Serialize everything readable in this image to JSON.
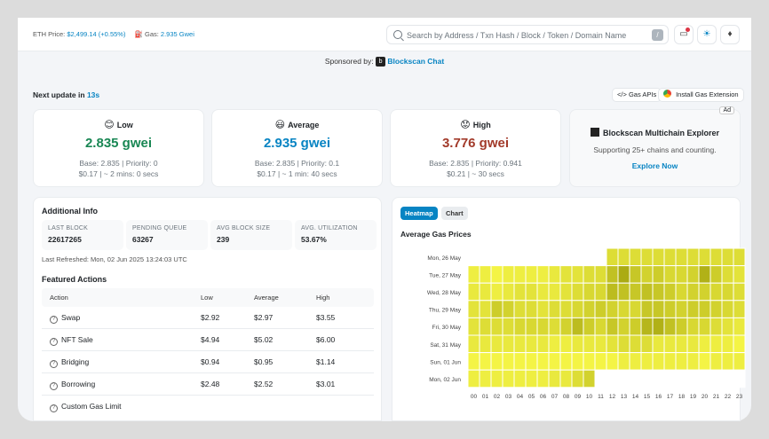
{
  "topbar": {
    "eth_label": "ETH Price:",
    "eth_value": "$2,499.14 (+0.55%)",
    "gas_label": "Gas:",
    "gas_value": "2.935 Gwei",
    "search_placeholder": "Search by Address / Txn Hash / Block / Token / Domain Name",
    "slash_key": "/"
  },
  "sponsor": {
    "label": "Sponsored by:",
    "name": "Blockscan Chat"
  },
  "next_update": {
    "label": "Next update in",
    "seconds": "13s"
  },
  "pills": {
    "gas_apis": "Gas APIs",
    "extension": "Install Gas Extension"
  },
  "gas_cards": [
    {
      "level": "Low",
      "emoji": "😊",
      "price": "2.835 gwei",
      "color": "#198754",
      "meta1": "Base: 2.835 | Priority: 0",
      "meta2": "$0.17 | ~ 2 mins: 0 secs"
    },
    {
      "level": "Average",
      "emoji": "😃",
      "price": "2.935 gwei",
      "color": "#0784c3",
      "meta1": "Base: 2.835 | Priority: 0.1",
      "meta2": "$0.17 | ~ 1 min: 40 secs"
    },
    {
      "level": "High",
      "emoji": "😟",
      "price": "3.776 gwei",
      "color": "#a23a2a",
      "meta1": "Base: 2.835 | Priority: 0.941",
      "meta2": "$0.21 | ~ 30 secs"
    }
  ],
  "ad": {
    "badge": "Ad",
    "title": "Blockscan Multichain Explorer",
    "subtitle": "Supporting 25+ chains and counting.",
    "cta": "Explore Now"
  },
  "additional_info": {
    "title": "Additional Info",
    "stats": [
      {
        "key": "LAST BLOCK",
        "value": "22617265"
      },
      {
        "key": "PENDING QUEUE",
        "value": "63267"
      },
      {
        "key": "AVG BLOCK SIZE",
        "value": "239"
      },
      {
        "key": "AVG. UTILIZATION",
        "value": "53.67%"
      }
    ],
    "refreshed": "Last Refreshed: Mon, 02 Jun 2025 13:24:03 UTC"
  },
  "featured": {
    "title": "Featured Actions",
    "headers": [
      "Action",
      "Low",
      "Average",
      "High"
    ],
    "rows": [
      [
        "Swap",
        "$2.92",
        "$2.97",
        "$3.55"
      ],
      [
        "NFT Sale",
        "$4.94",
        "$5.02",
        "$6.00"
      ],
      [
        "Bridging",
        "$0.94",
        "$0.95",
        "$1.14"
      ],
      [
        "Borrowing",
        "$2.48",
        "$2.52",
        "$3.01"
      ]
    ],
    "partial_row": "Custom Gas Limit"
  },
  "heatmap": {
    "tab_heatmap": "Heatmap",
    "tab_chart": "Chart",
    "title": "Average Gas Prices",
    "colors": {
      "low": "#ffff4d",
      "high": "#8f8f00",
      "empty": "#ffffff"
    }
  },
  "chart_data": {
    "type": "heatmap",
    "title": "Average Gas Prices",
    "x": [
      "00",
      "01",
      "02",
      "03",
      "04",
      "05",
      "06",
      "07",
      "08",
      "09",
      "10",
      "11",
      "12",
      "13",
      "14",
      "15",
      "16",
      "17",
      "18",
      "19",
      "20",
      "21",
      "22",
      "23"
    ],
    "y": [
      "Mon, 26 May",
      "Tue, 27 May",
      "Wed, 28 May",
      "Thu, 29 May",
      "Fri, 30 May",
      "Sat, 31 May",
      "Sun, 01 Jun",
      "Mon, 02 Jun"
    ],
    "values": [
      [
        null,
        null,
        null,
        null,
        null,
        null,
        null,
        null,
        null,
        null,
        null,
        null,
        0.3,
        0.3,
        0.3,
        0.3,
        0.3,
        0.3,
        0.3,
        0.3,
        0.3,
        0.3,
        0.3,
        0.3
      ],
      [
        0.15,
        0.15,
        0.1,
        0.15,
        0.15,
        0.15,
        0.15,
        0.2,
        0.25,
        0.25,
        0.3,
        0.3,
        0.55,
        0.75,
        0.5,
        0.4,
        0.45,
        0.35,
        0.35,
        0.4,
        0.7,
        0.45,
        0.3,
        0.25
      ],
      [
        0.2,
        0.2,
        0.15,
        0.2,
        0.25,
        0.25,
        0.2,
        0.2,
        0.25,
        0.3,
        0.35,
        0.35,
        0.6,
        0.55,
        0.5,
        0.55,
        0.5,
        0.45,
        0.35,
        0.4,
        0.4,
        0.35,
        0.35,
        0.3
      ],
      [
        0.25,
        0.25,
        0.45,
        0.4,
        0.3,
        0.3,
        0.25,
        0.3,
        0.3,
        0.35,
        0.4,
        0.45,
        0.4,
        0.35,
        0.35,
        0.5,
        0.5,
        0.45,
        0.4,
        0.45,
        0.45,
        0.4,
        0.35,
        0.3
      ],
      [
        0.25,
        0.3,
        0.3,
        0.3,
        0.35,
        0.35,
        0.35,
        0.3,
        0.4,
        0.6,
        0.45,
        0.35,
        0.5,
        0.4,
        0.45,
        0.65,
        0.7,
        0.55,
        0.45,
        0.35,
        0.35,
        0.3,
        0.25,
        0.2
      ],
      [
        0.2,
        0.2,
        0.2,
        0.2,
        0.2,
        0.2,
        0.2,
        0.15,
        0.15,
        0.2,
        0.2,
        0.2,
        0.25,
        0.3,
        0.3,
        0.3,
        0.2,
        0.2,
        0.2,
        0.2,
        0.15,
        0.15,
        0.15,
        0.1
      ],
      [
        0.1,
        0.1,
        0.1,
        0.1,
        0.1,
        0.1,
        0.1,
        0.1,
        0.1,
        0.1,
        0.1,
        0.1,
        0.1,
        0.15,
        0.15,
        0.15,
        0.15,
        0.15,
        0.15,
        0.15,
        0.1,
        0.15,
        0.15,
        0.15
      ],
      [
        0.15,
        0.15,
        0.15,
        0.15,
        0.15,
        0.15,
        0.15,
        0.2,
        0.2,
        0.3,
        0.4,
        null,
        null,
        null,
        null,
        null,
        null,
        null,
        null,
        null,
        null,
        null,
        null,
        null
      ]
    ]
  }
}
